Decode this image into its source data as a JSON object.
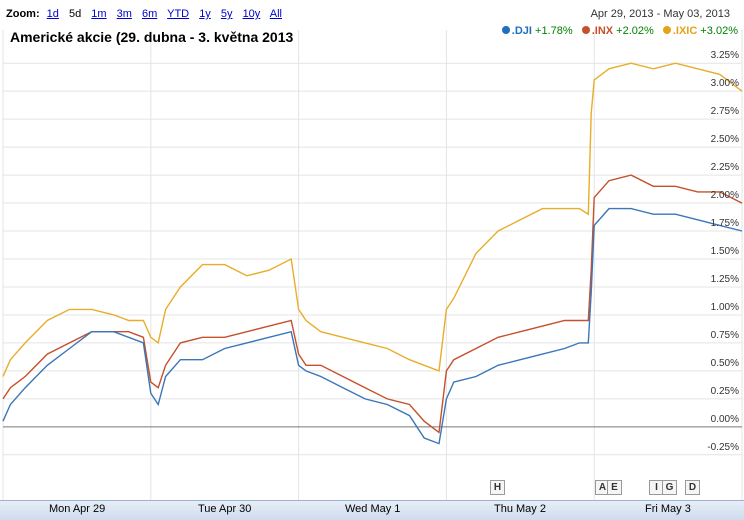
{
  "zoom": {
    "label": "Zoom:",
    "options": [
      "1d",
      "5d",
      "1m",
      "3m",
      "6m",
      "YTD",
      "1y",
      "5y",
      "10y",
      "All"
    ],
    "selected": "5d"
  },
  "date_range": {
    "start": "Apr 29, 2013",
    "separator": " - ",
    "end": "May 03, 2013"
  },
  "colors": {
    "dji": "#3a76b8",
    "inx": "#c5502b",
    "ixic": "#e8ad2a",
    "grid": "#e4e4e4",
    "zero": "#777777"
  },
  "legend": [
    {
      "name": ".DJI",
      "change": "+1.78%",
      "color": "#1f6fbf"
    },
    {
      "name": ".INX",
      "change": "+2.02%",
      "color": "#c5502b"
    },
    {
      "name": ".IXIC",
      "change": "+3.02%",
      "color": "#e8a21a"
    }
  ],
  "event_flags": [
    "H",
    "A",
    "E",
    "I",
    "G",
    "D"
  ],
  "chart_data": {
    "type": "line",
    "title": "Americké akcie (29. dubna - 3. května 2013",
    "x_ticks": [
      "Mon Apr 29",
      "Tue Apr 30",
      "Wed May 1",
      "Thu May 2",
      "Fri May 3"
    ],
    "y_ticks": [
      "3.25%",
      "3.00%",
      "2.75%",
      "2.50%",
      "2.25%",
      "2.00%",
      "1.75%",
      "1.50%",
      "1.25%",
      "1.00%",
      "0.75%",
      "0.50%",
      "0.25%",
      "0.00%",
      "-0.25%"
    ],
    "ylim": [
      -0.35,
      3.35
    ],
    "xlim": [
      0,
      5
    ],
    "grid": true,
    "legend_position": "top-right",
    "series": [
      {
        "name": ".DJI",
        "x": [
          0,
          0.05,
          0.15,
          0.3,
          0.45,
          0.6,
          0.75,
          0.85,
          0.95,
          1.0,
          1.05,
          1.1,
          1.2,
          1.35,
          1.5,
          1.65,
          1.8,
          1.95,
          2.0,
          2.05,
          2.15,
          2.3,
          2.45,
          2.6,
          2.75,
          2.85,
          2.95,
          3.0,
          3.05,
          3.2,
          3.35,
          3.5,
          3.65,
          3.8,
          3.9,
          3.96,
          3.98,
          4.0,
          4.1,
          4.25,
          4.4,
          4.55,
          4.7,
          4.85,
          5.0
        ],
        "values": [
          0.05,
          0.2,
          0.35,
          0.55,
          0.7,
          0.85,
          0.85,
          0.8,
          0.75,
          0.3,
          0.2,
          0.45,
          0.6,
          0.6,
          0.7,
          0.75,
          0.8,
          0.85,
          0.55,
          0.5,
          0.45,
          0.35,
          0.25,
          0.2,
          0.1,
          -0.1,
          -0.15,
          0.25,
          0.4,
          0.45,
          0.55,
          0.6,
          0.65,
          0.7,
          0.75,
          0.75,
          1.2,
          1.8,
          1.95,
          1.95,
          1.9,
          1.9,
          1.85,
          1.8,
          1.75
        ]
      },
      {
        "name": ".INX",
        "x": [
          0,
          0.05,
          0.15,
          0.3,
          0.45,
          0.6,
          0.75,
          0.85,
          0.95,
          1.0,
          1.05,
          1.1,
          1.2,
          1.35,
          1.5,
          1.65,
          1.8,
          1.95,
          2.0,
          2.05,
          2.15,
          2.3,
          2.45,
          2.6,
          2.75,
          2.85,
          2.95,
          3.0,
          3.05,
          3.2,
          3.35,
          3.5,
          3.65,
          3.8,
          3.9,
          3.96,
          3.98,
          4.0,
          4.1,
          4.25,
          4.4,
          4.55,
          4.7,
          4.85,
          5.0
        ],
        "values": [
          0.25,
          0.35,
          0.45,
          0.65,
          0.75,
          0.85,
          0.85,
          0.85,
          0.8,
          0.4,
          0.35,
          0.55,
          0.75,
          0.8,
          0.8,
          0.85,
          0.9,
          0.95,
          0.65,
          0.55,
          0.55,
          0.45,
          0.35,
          0.25,
          0.2,
          0.05,
          -0.05,
          0.5,
          0.6,
          0.7,
          0.8,
          0.85,
          0.9,
          0.95,
          0.95,
          0.95,
          1.4,
          2.05,
          2.2,
          2.25,
          2.15,
          2.15,
          2.1,
          2.1,
          2.0
        ]
      },
      {
        "name": ".IXIC",
        "x": [
          0,
          0.05,
          0.15,
          0.3,
          0.45,
          0.6,
          0.75,
          0.85,
          0.95,
          1.0,
          1.05,
          1.1,
          1.2,
          1.35,
          1.5,
          1.65,
          1.8,
          1.95,
          2.0,
          2.05,
          2.15,
          2.3,
          2.45,
          2.6,
          2.75,
          2.85,
          2.95,
          3.0,
          3.05,
          3.2,
          3.35,
          3.5,
          3.65,
          3.8,
          3.9,
          3.96,
          3.98,
          4.0,
          4.1,
          4.25,
          4.4,
          4.55,
          4.7,
          4.85,
          5.0
        ],
        "values": [
          0.45,
          0.6,
          0.75,
          0.95,
          1.05,
          1.05,
          1.0,
          0.95,
          0.95,
          0.8,
          0.75,
          1.05,
          1.25,
          1.45,
          1.45,
          1.35,
          1.4,
          1.5,
          1.05,
          0.95,
          0.85,
          0.8,
          0.75,
          0.7,
          0.6,
          0.55,
          0.5,
          1.05,
          1.15,
          1.55,
          1.75,
          1.85,
          1.95,
          1.95,
          1.95,
          1.9,
          2.8,
          3.1,
          3.2,
          3.25,
          3.2,
          3.25,
          3.2,
          3.15,
          3.0
        ]
      }
    ]
  }
}
